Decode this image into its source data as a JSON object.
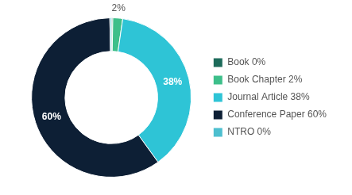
{
  "chart_data": {
    "type": "doughnut",
    "categories": [
      "Book 0%",
      "Book Chapter 2%",
      "Journal Article 38%",
      "Conference Paper 60%",
      "NTRO 0%"
    ],
    "values": [
      0.3,
      2,
      38,
      60,
      0.3
    ],
    "value_labels": [
      null,
      "2%",
      "38%",
      "60%",
      null
    ],
    "data_labels": true,
    "colors": [
      "#1d6b5a",
      "#3dbf8a",
      "#2ec4d6",
      "#0d1f35",
      "#4dbfcf"
    ],
    "legend": "right"
  }
}
